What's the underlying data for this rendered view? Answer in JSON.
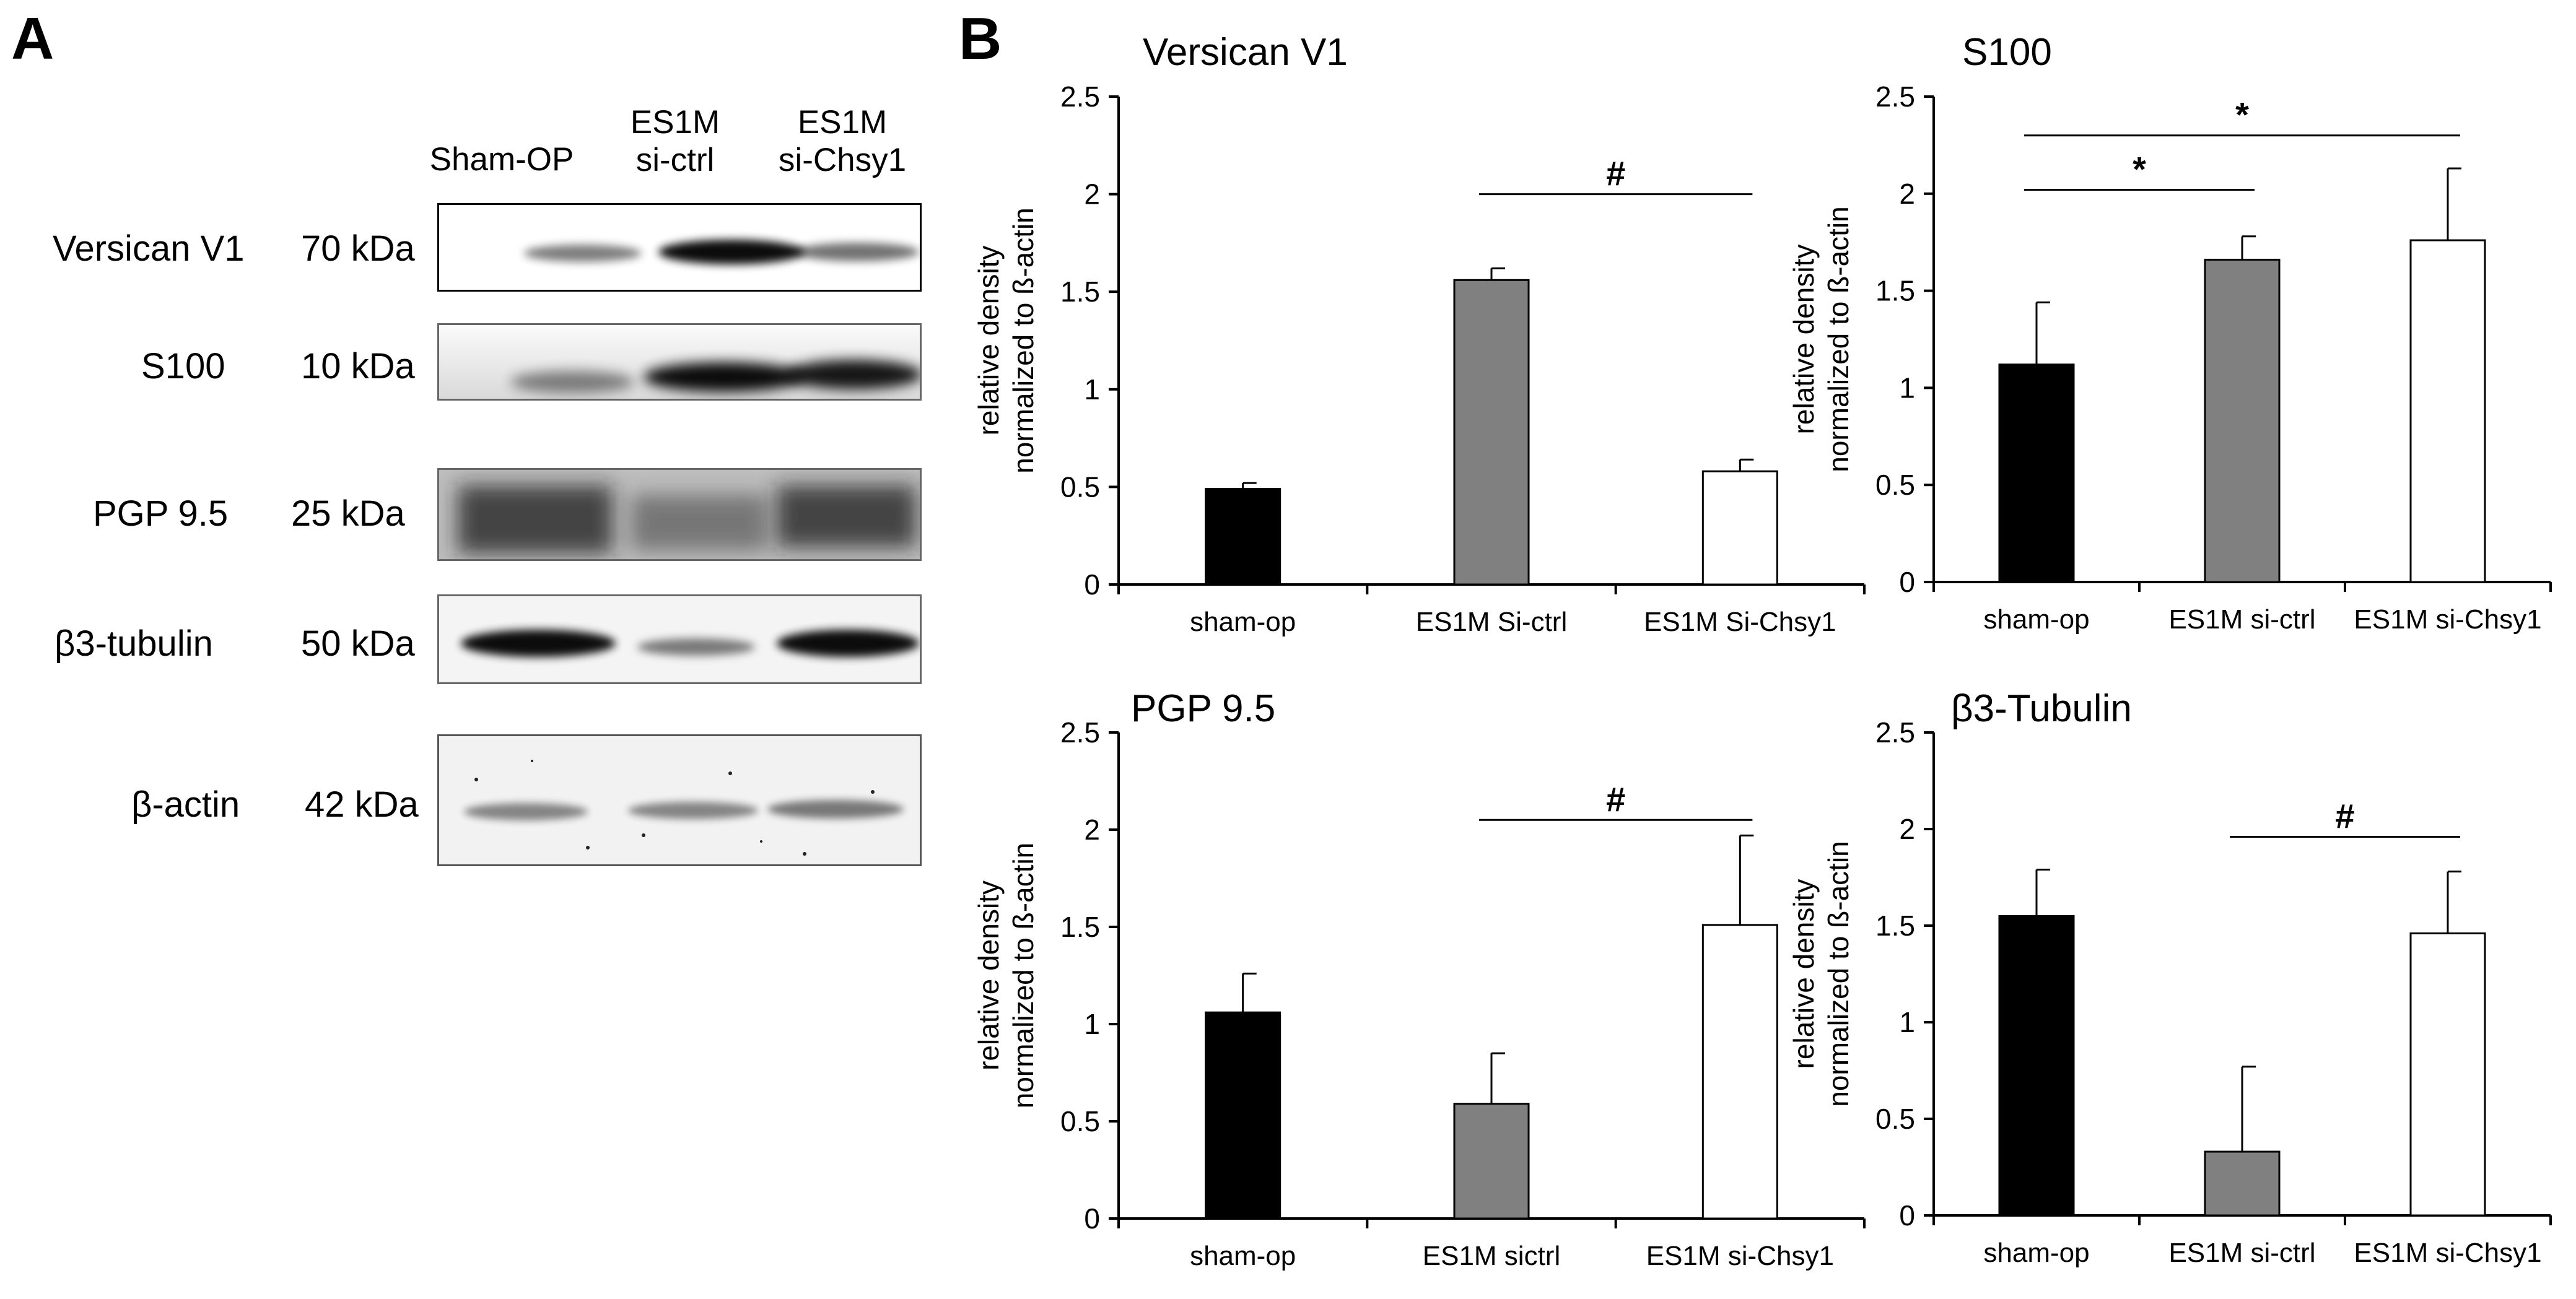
{
  "panel_a": {
    "letter": "A",
    "lanes": [
      {
        "line1": "Sham-OP",
        "line2": ""
      },
      {
        "line1": "ES1M",
        "line2": "si-ctrl"
      },
      {
        "line1": "ES1M",
        "line2": "si-Chsy1"
      }
    ],
    "blots": [
      {
        "label": "Versican V1",
        "kda": "70 kDa",
        "band_intensity": [
          0.45,
          0.95,
          0.55
        ]
      },
      {
        "label": "S100",
        "kda": "10 kDa",
        "band_intensity": [
          0.35,
          0.95,
          0.9
        ]
      },
      {
        "label": "PGP 9.5",
        "kda": "25 kDa",
        "band_intensity": [
          0.7,
          0.45,
          0.75
        ]
      },
      {
        "label": "β3-tubulin",
        "kda": "50 kDa",
        "band_intensity": [
          0.95,
          0.45,
          0.95
        ]
      },
      {
        "label": "β-actin",
        "kda": "42 kDa",
        "band_intensity": [
          0.5,
          0.5,
          0.5
        ]
      }
    ]
  },
  "panel_b": {
    "letter": "B"
  },
  "colors": {
    "bar_1": "#000000",
    "bar_2": "#808080",
    "bar_3": "#ffffff",
    "axis": "#000000",
    "sig_line": "#000000"
  },
  "chart_data": [
    {
      "type": "bar",
      "title": "Versican V1",
      "categories": [
        "sham-op",
        "ES1M Si-ctrl",
        "ES1M Si-Chsy1"
      ],
      "values": [
        0.49,
        1.56,
        0.58
      ],
      "errors": [
        0.03,
        0.06,
        0.06
      ],
      "ylabel": [
        "relative density",
        "normalized to ß-actin"
      ],
      "ylim": [
        0,
        2.5
      ],
      "yticks": [
        "0",
        "0.5",
        "1",
        "1.5",
        "2",
        "2.5"
      ],
      "significance": [
        {
          "from": 1,
          "to": 2,
          "y": 2.0,
          "symbol": "#"
        }
      ]
    },
    {
      "type": "bar",
      "title": "S100",
      "categories": [
        "sham-op",
        "ES1M si-ctrl",
        "ES1M si-Chsy1"
      ],
      "values": [
        1.12,
        1.66,
        1.76
      ],
      "errors": [
        0.32,
        0.12,
        0.37
      ],
      "ylabel": [
        "relative density",
        "normalized to ß-actin"
      ],
      "ylim": [
        0,
        2.5
      ],
      "yticks": [
        "0",
        "0.5",
        "1",
        "1.5",
        "2",
        "2.5"
      ],
      "significance": [
        {
          "from": 0,
          "to": 1,
          "y": 2.02,
          "symbol": "*"
        },
        {
          "from": 0,
          "to": 2,
          "y": 2.3,
          "symbol": "*"
        }
      ]
    },
    {
      "type": "bar",
      "title": "PGP 9.5",
      "categories": [
        "sham-op",
        "ES1M sictrl",
        "ES1M si-Chsy1"
      ],
      "values": [
        1.06,
        0.59,
        1.51
      ],
      "errors": [
        0.2,
        0.26,
        0.46
      ],
      "ylabel": [
        "relative density",
        "normalized to ß-actin"
      ],
      "ylim": [
        0,
        2.5
      ],
      "yticks": [
        "0",
        "0.5",
        "1",
        "1.5",
        "2",
        "2.5"
      ],
      "significance": [
        {
          "from": 1,
          "to": 2,
          "y": 2.05,
          "symbol": "#"
        }
      ]
    },
    {
      "type": "bar",
      "title": "β3-Tubulin",
      "categories": [
        "sham-op",
        "ES1M si-ctrl",
        "ES1M si-Chsy1"
      ],
      "values": [
        1.55,
        0.33,
        1.46
      ],
      "errors": [
        0.24,
        0.44,
        0.32
      ],
      "ylabel": [
        "relative density",
        "normalized to ß-actin"
      ],
      "ylim": [
        0,
        2.5
      ],
      "yticks": [
        "0",
        "0.5",
        "1",
        "1.5",
        "2",
        "2.5"
      ],
      "significance": [
        {
          "from": 1,
          "to": 2,
          "y": 1.96,
          "symbol": "#"
        }
      ]
    }
  ]
}
